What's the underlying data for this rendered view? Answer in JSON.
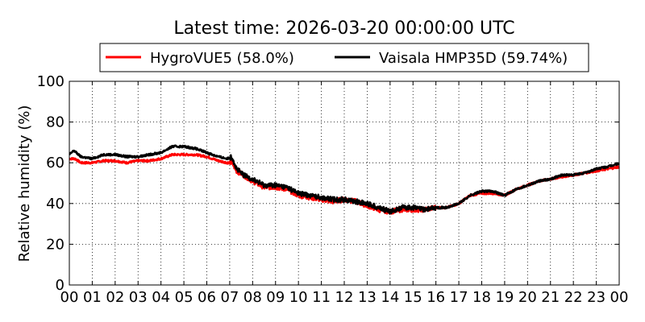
{
  "chart_data": {
    "type": "line",
    "title": "Latest time: 2026-03-20 00:00:00 UTC",
    "xlabel": "",
    "ylabel": "Relative humidity (%)",
    "xlim": [
      0,
      24
    ],
    "ylim": [
      0,
      100
    ],
    "x_tick_values": [
      0,
      1,
      2,
      3,
      4,
      5,
      6,
      7,
      8,
      9,
      10,
      11,
      12,
      13,
      14,
      15,
      16,
      17,
      18,
      19,
      20,
      21,
      22,
      23,
      24
    ],
    "x_tick_labels": [
      "00",
      "01",
      "02",
      "03",
      "04",
      "05",
      "06",
      "07",
      "08",
      "09",
      "10",
      "11",
      "12",
      "13",
      "14",
      "15",
      "16",
      "17",
      "18",
      "19",
      "20",
      "21",
      "22",
      "23",
      "00"
    ],
    "y_ticks": [
      0,
      20,
      40,
      60,
      80,
      100
    ],
    "grid": true,
    "legend_position": "top-center",
    "series": [
      {
        "name": "HygroVUE5 (58.0%)",
        "color": "#ff0000",
        "x": [
          0,
          0.25,
          0.5,
          1,
          1.5,
          2,
          2.5,
          3,
          3.5,
          4,
          4.5,
          5,
          5.5,
          6,
          6.5,
          6.9,
          7.1,
          7.3,
          7.6,
          8,
          8.5,
          9,
          9.5,
          10,
          10.5,
          11,
          11.5,
          12,
          12.5,
          13,
          13.5,
          14,
          14.5,
          15,
          15.5,
          16,
          16.5,
          17,
          17.5,
          18,
          18.5,
          19,
          19.5,
          20,
          20.5,
          21,
          21.5,
          22,
          22.5,
          23,
          23.5,
          24
        ],
        "y": [
          62,
          62,
          60,
          60,
          61,
          61,
          60,
          61,
          61,
          62,
          64,
          64,
          64,
          63,
          61,
          60,
          60,
          56,
          54,
          51,
          48,
          48,
          47,
          44,
          43,
          42,
          41,
          42,
          41,
          39,
          37,
          36,
          37,
          37,
          37,
          38,
          38,
          40,
          44,
          45,
          45,
          44,
          47,
          49,
          51,
          52,
          53,
          54,
          55,
          56,
          57,
          58
        ]
      },
      {
        "name": "Vaisala HMP35D (59.74%)",
        "color": "#000000",
        "x": [
          0,
          0.2,
          0.5,
          1,
          1.5,
          2,
          2.5,
          3,
          3.5,
          4,
          4.5,
          5,
          5.5,
          6,
          6.5,
          6.9,
          7.1,
          7.3,
          7.6,
          8,
          8.5,
          9,
          9.5,
          10,
          10.5,
          11,
          11.5,
          12,
          12.5,
          13,
          13.5,
          14,
          14.5,
          15,
          15.5,
          16,
          16.5,
          17,
          17.5,
          18,
          18.5,
          19,
          19.5,
          20,
          20.5,
          21,
          21.5,
          22,
          22.5,
          23,
          23.5,
          24
        ],
        "y": [
          64,
          66,
          63,
          62,
          64,
          64,
          63,
          63,
          64,
          65,
          68,
          68,
          67,
          65,
          63,
          62,
          63,
          57,
          54,
          52,
          49,
          49,
          48,
          45,
          44,
          43,
          42,
          42,
          41,
          40,
          38,
          36,
          38,
          38,
          37,
          38,
          38,
          40,
          44,
          46,
          46,
          44,
          47,
          49,
          51,
          52,
          54,
          54,
          55,
          57,
          58,
          59.7
        ]
      }
    ]
  }
}
